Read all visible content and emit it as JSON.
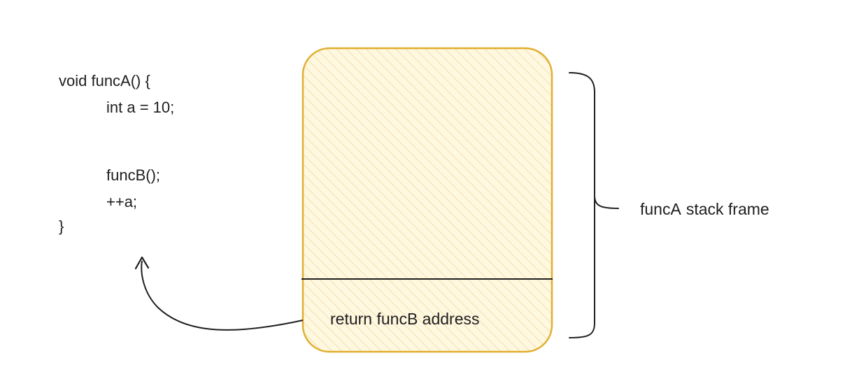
{
  "code": {
    "lines": [
      "void funcA() {",
      "int a = 10;",
      "funcB();",
      "++a;",
      "}"
    ]
  },
  "stack": {
    "slot_label": "return funcB address",
    "frame_function": "funcA",
    "frame_text": "stack frame"
  },
  "colors": {
    "frame_stroke": "#e1ae2f",
    "frame_fill": "#fff6d9",
    "hatch": "#f1dfa6",
    "ink": "#1e1e1e"
  }
}
